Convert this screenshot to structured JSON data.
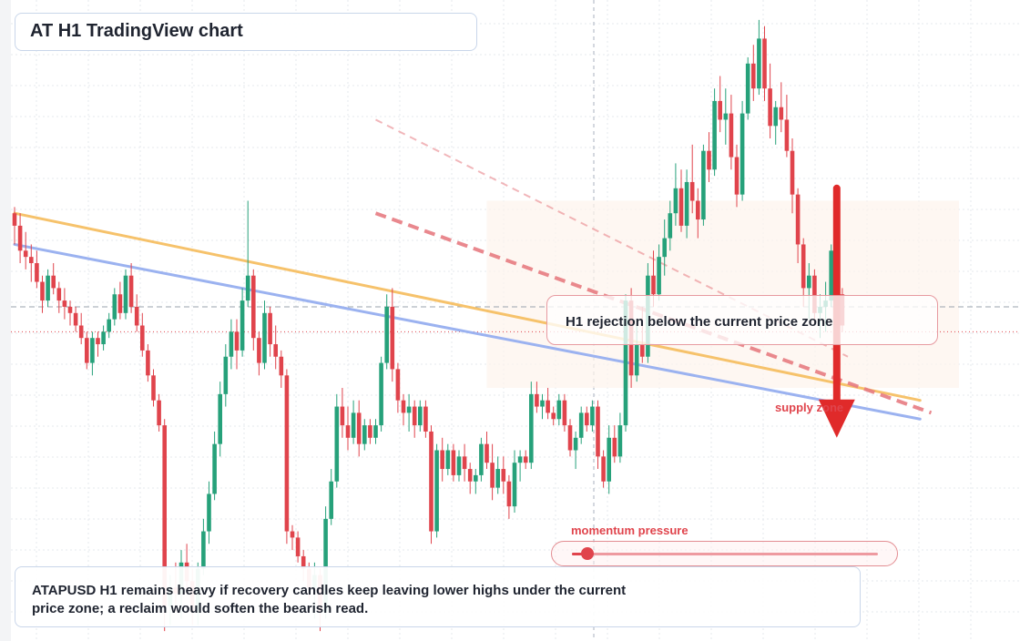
{
  "title": "AT H1 TradingView chart",
  "callout": "H1 rejection below the current price zone",
  "zone_label": "supply zone",
  "momentum": {
    "label": "momentum pressure",
    "level": 0.05
  },
  "note": "ATAPUSD H1 remains heavy if recovery candles keep leaving lower highs under the current price zone; a reclaim would soften the bearish read.",
  "colors": {
    "up": "#26a17a",
    "down": "#e0444c",
    "ema_fast": "#f6c26b",
    "ema_slow": "#9bb2f0",
    "channel": "#e77c82",
    "arrow": "#e02a2a"
  },
  "chart_data": {
    "type": "candlestick",
    "symbol": "ATAPUSD",
    "timeframe": "H1",
    "ylim": [
      0,
      100
    ],
    "current_price": 49,
    "reference_price": 53,
    "supply_zone": [
      40,
      70
    ],
    "ema_fast": {
      "from": [
        0,
        68
      ],
      "to": [
        163,
        38
      ]
    },
    "ema_slow": {
      "from": [
        0,
        63
      ],
      "to": [
        163,
        35
      ]
    },
    "channel_upper": {
      "from": [
        65,
        83
      ],
      "to": [
        150,
        45
      ]
    },
    "channel_lower": {
      "from": [
        65,
        68
      ],
      "to": [
        165,
        36
      ]
    },
    "bearish_arrow": {
      "from": 72,
      "to": 32
    },
    "candles": [
      [
        68,
        69,
        63,
        66
      ],
      [
        66,
        68,
        60,
        62
      ],
      [
        62,
        65,
        59,
        61
      ],
      [
        61,
        63,
        57,
        60
      ],
      [
        60,
        62,
        56,
        57
      ],
      [
        57,
        58,
        52,
        54
      ],
      [
        54,
        59,
        53,
        58
      ],
      [
        58,
        60,
        55,
        56
      ],
      [
        56,
        57,
        52,
        54
      ],
      [
        54,
        56,
        51,
        53
      ],
      [
        53,
        54,
        50,
        52
      ],
      [
        52,
        53,
        49,
        50
      ],
      [
        50,
        52,
        47,
        48
      ],
      [
        48,
        49,
        43,
        44
      ],
      [
        44,
        49,
        42,
        48
      ],
      [
        48,
        49,
        45,
        47
      ],
      [
        47,
        50,
        46,
        49
      ],
      [
        49,
        52,
        48,
        51
      ],
      [
        51,
        56,
        50,
        55
      ],
      [
        55,
        57,
        51,
        52
      ],
      [
        52,
        59,
        51,
        58
      ],
      [
        58,
        60,
        52,
        53
      ],
      [
        53,
        55,
        49,
        50
      ],
      [
        50,
        52,
        45,
        46
      ],
      [
        46,
        47,
        41,
        42
      ],
      [
        42,
        43,
        37,
        38
      ],
      [
        38,
        39,
        33,
        34
      ],
      [
        34,
        35,
        1,
        5
      ],
      [
        5,
        10,
        2,
        8
      ],
      [
        8,
        12,
        4,
        7
      ],
      [
        7,
        14,
        3,
        12
      ],
      [
        12,
        15,
        7,
        9
      ],
      [
        9,
        11,
        2,
        4
      ],
      [
        4,
        12,
        2,
        11
      ],
      [
        11,
        19,
        10,
        17
      ],
      [
        17,
        25,
        15,
        23
      ],
      [
        23,
        33,
        22,
        31
      ],
      [
        31,
        41,
        29,
        39
      ],
      [
        39,
        47,
        37,
        45
      ],
      [
        45,
        51,
        43,
        49
      ],
      [
        49,
        51,
        43,
        46
      ],
      [
        46,
        56,
        45,
        54
      ],
      [
        54,
        70,
        53,
        58
      ],
      [
        58,
        59,
        46,
        48
      ],
      [
        48,
        49,
        42,
        44
      ],
      [
        44,
        54,
        43,
        52
      ],
      [
        52,
        53,
        45,
        47
      ],
      [
        47,
        50,
        43,
        45
      ],
      [
        45,
        46,
        40,
        42
      ],
      [
        42,
        43,
        15,
        17
      ],
      [
        17,
        18,
        14,
        16
      ],
      [
        16,
        17,
        12,
        13
      ],
      [
        13,
        14,
        9,
        11
      ],
      [
        11,
        12,
        6,
        8
      ],
      [
        8,
        12,
        3,
        10
      ],
      [
        10,
        11,
        1,
        4
      ],
      [
        4,
        21,
        3,
        19
      ],
      [
        19,
        27,
        18,
        25
      ],
      [
        25,
        39,
        24,
        37
      ],
      [
        37,
        40,
        32,
        34
      ],
      [
        34,
        37,
        30,
        32
      ],
      [
        32,
        38,
        31,
        36
      ],
      [
        36,
        38,
        29,
        31
      ],
      [
        31,
        35,
        30,
        34
      ],
      [
        34,
        35,
        31,
        32
      ],
      [
        32,
        35,
        31,
        34
      ],
      [
        34,
        45,
        33,
        44
      ],
      [
        44,
        55,
        43,
        53
      ],
      [
        53,
        56,
        41,
        43
      ],
      [
        43,
        44,
        36,
        38
      ],
      [
        38,
        39,
        34,
        36
      ],
      [
        36,
        39,
        33,
        37
      ],
      [
        37,
        38,
        32,
        34
      ],
      [
        34,
        38,
        33,
        37
      ],
      [
        37,
        38,
        32,
        33
      ],
      [
        33,
        34,
        15,
        17
      ],
      [
        17,
        31,
        16,
        30
      ],
      [
        30,
        32,
        25,
        27
      ],
      [
        27,
        31,
        26,
        30
      ],
      [
        30,
        31,
        25,
        26
      ],
      [
        26,
        30,
        25,
        29
      ],
      [
        29,
        31,
        25,
        27
      ],
      [
        27,
        28,
        23,
        25
      ],
      [
        25,
        27,
        23,
        26
      ],
      [
        26,
        32,
        25,
        31
      ],
      [
        31,
        33,
        27,
        28
      ],
      [
        28,
        31,
        22,
        24
      ],
      [
        24,
        29,
        23,
        27
      ],
      [
        27,
        29,
        23,
        25
      ],
      [
        25,
        26,
        19,
        21
      ],
      [
        21,
        30,
        20,
        28
      ],
      [
        28,
        30,
        25,
        29
      ],
      [
        29,
        30,
        27,
        28
      ],
      [
        28,
        41,
        27,
        39
      ],
      [
        39,
        41,
        36,
        37
      ],
      [
        37,
        39,
        35,
        38
      ],
      [
        38,
        40,
        35,
        36
      ],
      [
        36,
        37,
        34,
        35
      ],
      [
        35,
        39,
        34,
        38
      ],
      [
        38,
        39,
        33,
        34
      ],
      [
        34,
        35,
        29,
        30
      ],
      [
        30,
        33,
        27,
        32
      ],
      [
        32,
        37,
        31,
        36
      ],
      [
        36,
        37,
        33,
        34
      ],
      [
        34,
        38,
        33,
        37
      ],
      [
        37,
        38,
        27,
        29
      ],
      [
        29,
        30,
        24,
        25
      ],
      [
        25,
        34,
        23,
        32
      ],
      [
        32,
        34,
        28,
        29
      ],
      [
        29,
        36,
        28,
        34
      ],
      [
        34,
        55,
        33,
        54
      ],
      [
        54,
        56,
        40,
        42
      ],
      [
        42,
        50,
        41,
        47
      ],
      [
        47,
        53,
        44,
        45
      ],
      [
        45,
        60,
        44,
        58
      ],
      [
        58,
        62,
        53,
        55
      ],
      [
        55,
        63,
        54,
        61
      ],
      [
        61,
        67,
        58,
        64
      ],
      [
        64,
        70,
        62,
        68
      ],
      [
        68,
        76,
        66,
        72
      ],
      [
        72,
        75,
        65,
        66
      ],
      [
        66,
        75,
        64,
        73
      ],
      [
        73,
        79,
        68,
        70
      ],
      [
        70,
        72,
        64,
        67
      ],
      [
        67,
        79,
        66,
        78
      ],
      [
        78,
        81,
        73,
        75
      ],
      [
        75,
        88,
        74,
        86
      ],
      [
        86,
        90,
        81,
        83
      ],
      [
        83,
        88,
        79,
        84
      ],
      [
        84,
        87,
        75,
        77
      ],
      [
        77,
        79,
        69,
        71
      ],
      [
        71,
        86,
        70,
        84
      ],
      [
        84,
        93,
        83,
        92
      ],
      [
        92,
        95,
        86,
        88
      ],
      [
        88,
        99,
        87,
        96
      ],
      [
        96,
        98,
        86,
        88
      ],
      [
        88,
        92,
        80,
        82
      ],
      [
        82,
        86,
        79,
        85
      ],
      [
        85,
        89,
        81,
        83
      ],
      [
        83,
        87,
        77,
        78
      ],
      [
        78,
        80,
        68,
        71
      ],
      [
        71,
        72,
        60,
        63
      ],
      [
        63,
        64,
        53,
        56
      ],
      [
        56,
        60,
        51,
        58
      ],
      [
        58,
        59,
        50,
        52
      ],
      [
        52,
        55,
        48,
        53
      ],
      [
        53,
        57,
        49,
        54
      ],
      [
        54,
        63,
        53,
        62
      ],
      [
        62,
        63,
        53,
        55
      ],
      [
        55,
        56,
        49,
        50
      ]
    ]
  }
}
